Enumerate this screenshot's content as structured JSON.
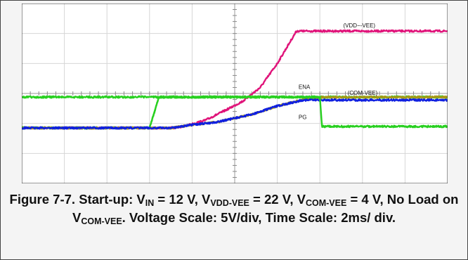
{
  "chart_data": {
    "type": "line",
    "xlabel": "",
    "ylabel": "",
    "x_divisions": 10,
    "y_divisions": 6,
    "grid": true,
    "series": [
      {
        "name": "(VDD−VEE)",
        "color": "#e0147a",
        "points": [
          [
            0,
            -1.15
          ],
          [
            3.55,
            -1.15
          ],
          [
            3.8,
            -1.1
          ],
          [
            4.3,
            -0.9
          ],
          [
            4.8,
            -0.55
          ],
          [
            5.2,
            -0.25
          ],
          [
            5.6,
            0.2
          ],
          [
            6.0,
            1.0
          ],
          [
            6.45,
            2.08
          ],
          [
            10,
            2.08
          ]
        ]
      },
      {
        "name": "ENA",
        "color": "#28d020",
        "points": [
          [
            0,
            -1.15
          ],
          [
            3.0,
            -1.15
          ],
          [
            3.22,
            -0.12
          ],
          [
            10,
            -0.12
          ]
        ]
      },
      {
        "name": "(COM−VEE)",
        "color": "#a89818",
        "points": [
          [
            0,
            -1.15
          ],
          [
            3.5,
            -1.15
          ],
          [
            4.0,
            -1.05
          ],
          [
            4.6,
            -0.95
          ],
          [
            5.4,
            -0.7
          ],
          [
            6.0,
            -0.42
          ],
          [
            6.6,
            -0.2
          ],
          [
            7.0,
            -0.13
          ],
          [
            10,
            -0.12
          ]
        ]
      },
      {
        "name": "(COM−VEE)",
        "color": "#1020e0",
        "points": [
          [
            0,
            -1.15
          ],
          [
            3.5,
            -1.15
          ],
          [
            4.0,
            -1.05
          ],
          [
            4.6,
            -0.95
          ],
          [
            5.4,
            -0.7
          ],
          [
            6.0,
            -0.42
          ],
          [
            6.6,
            -0.22
          ],
          [
            7.0,
            -0.22
          ],
          [
            10,
            -0.22
          ]
        ]
      },
      {
        "name": "PG",
        "color": "#28d020",
        "points": [
          [
            0,
            -0.12
          ],
          [
            7.0,
            -0.12
          ],
          [
            7.05,
            -1.1
          ],
          [
            10,
            -1.1
          ]
        ]
      }
    ],
    "annotations": [
      {
        "text": "(VDD−-VEE)",
        "x": 7.55,
        "y": 2.2
      },
      {
        "text": "ENA",
        "x": 6.5,
        "y": 0.15
      },
      {
        "text": "(COM-VEE)",
        "x": 7.65,
        "y": -0.05
      },
      {
        "text": "PG",
        "x": 6.5,
        "y": -0.85
      }
    ]
  },
  "caption": {
    "prefix": "Figure 7-7. Start-up: V",
    "vin_sub": "IN",
    "vin_val": " = 12 V, V",
    "vddvee_sub": "VDD-VEE",
    "vddvee_val": " = 22 V, V",
    "comvee_sub": "COM-VEE",
    "comvee_val": " = 4 V, No Load on V",
    "load_sub": "COM-VEE",
    "suffix": ". Voltage Scale: 5V/div, Time Scale: 2ms/ div."
  }
}
